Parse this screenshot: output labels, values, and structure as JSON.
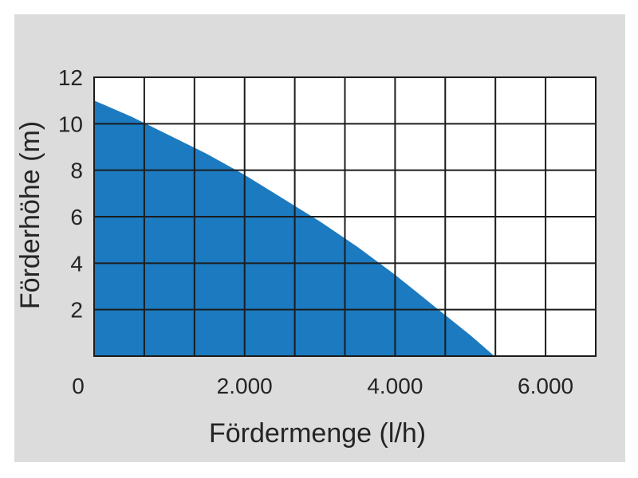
{
  "chart_data": {
    "type": "area",
    "title": "",
    "xlabel": "Fördermenge (l/h)",
    "ylabel": "Förderhöhe (m)",
    "xlim": [
      0,
      6667
    ],
    "ylim": [
      0,
      12
    ],
    "x_grid_step": 666.7,
    "y_grid_step": 2,
    "grid": true,
    "legend": "none",
    "x_ticks": [
      {
        "value": 0,
        "label": "0"
      },
      {
        "value": 2000,
        "label": "2.000"
      },
      {
        "value": 4000,
        "label": "4.000"
      },
      {
        "value": 6000,
        "label": "6.000"
      }
    ],
    "y_ticks": [
      {
        "value": 2,
        "label": "2"
      },
      {
        "value": 4,
        "label": "4"
      },
      {
        "value": 6,
        "label": "6"
      },
      {
        "value": 8,
        "label": "8"
      },
      {
        "value": 10,
        "label": "10"
      },
      {
        "value": 12,
        "label": "12"
      }
    ],
    "series": [
      {
        "x": [
          0,
          500,
          1000,
          1500,
          2000,
          2500,
          3000,
          3500,
          4000,
          4500,
          5000,
          5320
        ],
        "y": [
          11.0,
          10.3,
          9.5,
          8.7,
          7.8,
          6.8,
          5.8,
          4.7,
          3.5,
          2.2,
          0.9,
          0
        ]
      }
    ],
    "colors": {
      "area": "#1b7ac0",
      "grid": "#1c1c1c",
      "text": "#242424",
      "panel_bg": "#dcdcdc",
      "plot_bg": "#ffffff",
      "page_bg": "#ffffff"
    }
  }
}
